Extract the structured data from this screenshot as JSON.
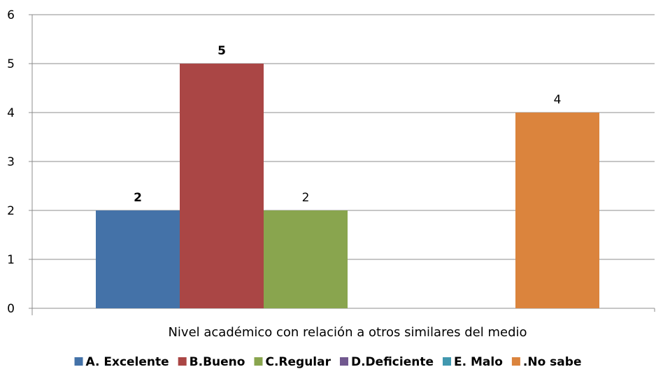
{
  "chart_data": {
    "type": "bar",
    "categories": [
      ""
    ],
    "xlabel": "Nivel académico con relación a otros similares del medio",
    "ylabel": "",
    "ylim": [
      0,
      6
    ],
    "yticks": [
      "0",
      "1",
      "2",
      "3",
      "4",
      "5",
      "6"
    ],
    "grid": true,
    "legend_position": "bottom",
    "series": [
      {
        "name": "A. Excelente",
        "values": [
          2
        ],
        "color": "#4472A8",
        "label": "2",
        "label_bold": true
      },
      {
        "name": "B.Bueno",
        "values": [
          5
        ],
        "color": "#AA4645",
        "label": "5",
        "label_bold": true
      },
      {
        "name": "C.Regular",
        "values": [
          2
        ],
        "color": "#89A54E",
        "label": "2",
        "label_bold": false
      },
      {
        "name": "D.Deficiente",
        "values": [
          0
        ],
        "color": "#71588F",
        "label": "",
        "label_bold": false
      },
      {
        "name": "E. Malo",
        "values": [
          0
        ],
        "color": "#4198AF",
        "label": "",
        "label_bold": false
      },
      {
        "name": ".No sabe",
        "values": [
          4
        ],
        "color": "#DB843D",
        "label": "4",
        "label_bold": false
      }
    ]
  }
}
